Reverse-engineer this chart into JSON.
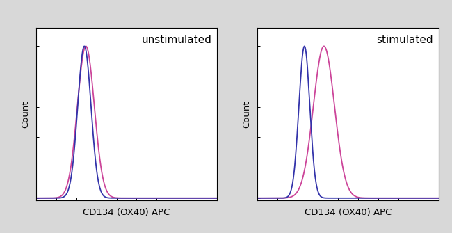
{
  "title_left": "unstimulated",
  "title_right": "stimulated",
  "xlabel": "CD134 (OX40) APC",
  "ylabel": "Count",
  "blue_color": "#3333aa",
  "pink_color": "#cc4499",
  "background_color": "#ffffff",
  "fig_background": "#d8d8d8",
  "title_fontsize": 11,
  "label_fontsize": 9.5,
  "linewidth": 1.3,
  "x_min": 0.0,
  "x_max": 6.0,
  "n_points": 600,
  "unstim_blue_mu": 1.6,
  "unstim_blue_sigma": 0.22,
  "unstim_pink_mu": 1.65,
  "unstim_pink_sigma": 0.28,
  "stim_blue_mu": 1.55,
  "stim_blue_sigma": 0.18,
  "stim_pink_mu": 2.2,
  "stim_pink_sigma": 0.35
}
